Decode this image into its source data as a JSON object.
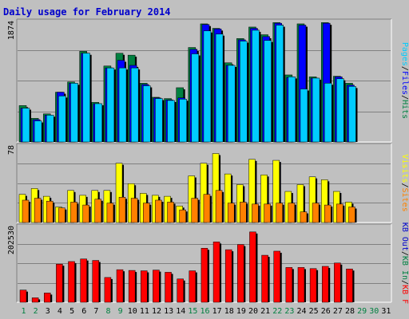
{
  "chart_data": {
    "type": "bar",
    "title": "Daily usage for February 2014",
    "days": [
      "1",
      "2",
      "3",
      "4",
      "5",
      "6",
      "7",
      "8",
      "9",
      "10",
      "11",
      "12",
      "13",
      "14",
      "15",
      "16",
      "17",
      "18",
      "19",
      "20",
      "21",
      "22",
      "23",
      "24",
      "25",
      "26",
      "27",
      "28",
      "29",
      "30",
      "31"
    ],
    "weekend_days": [
      "1",
      "2",
      "8",
      "9",
      "15",
      "16",
      "22",
      "23",
      "29",
      "30"
    ],
    "colors": {
      "background": "#c0c0c0",
      "title": "#0000cc",
      "weekday_label": "#000000",
      "weekend_label": "#008040",
      "pages": "#00ccff",
      "files": "#0000ff",
      "hits": "#008040",
      "visits": "#ffff00",
      "sites": "#ff8000",
      "kbout": "#0000cc",
      "kbin": "#008040",
      "kbf": "#ff0000"
    },
    "panels": [
      {
        "name": "hits-files-pages",
        "ymax_label": "1874",
        "ymax": 1874,
        "legend": [
          {
            "text": "Pages",
            "color": "#00ccff"
          },
          {
            "text": "Files",
            "color": "#0000ff"
          },
          {
            "text": "Hits",
            "color": "#008040"
          }
        ],
        "series": [
          {
            "name": "Hits",
            "values": [
              570,
              370,
              440,
              780,
              940,
              1420,
              620,
              1190,
              1390,
              1360,
              920,
              700,
              680,
              850,
              1480,
              1850,
              1780,
              1240,
              1620,
              1800,
              1680,
              1870,
              1050,
              1850,
              1020,
              1870,
              1030,
              920,
              null,
              null,
              null
            ]
          },
          {
            "name": "Files",
            "values": [
              530,
              350,
              420,
              780,
              920,
              1390,
              600,
              1160,
              1280,
              1200,
              900,
              690,
              660,
              690,
              1450,
              1840,
              1770,
              1200,
              1600,
              1780,
              1650,
              1860,
              1010,
              1830,
              1000,
              1860,
              1020,
              890,
              null,
              null,
              null
            ]
          },
          {
            "name": "Pages",
            "values": [
              530,
              330,
              420,
              720,
              920,
              1390,
              600,
              1160,
              1160,
              1160,
              880,
              680,
              650,
              670,
              1380,
              1740,
              1690,
              1200,
              1580,
              1750,
              1590,
              1830,
              1020,
              830,
              1000,
              920,
              990,
              870,
              null,
              null,
              null
            ]
          }
        ]
      },
      {
        "name": "visits-sites",
        "ymax_label": "78",
        "ymax": 78,
        "legend": [
          {
            "text": "Visits",
            "color": "#ffff00"
          },
          {
            "text": "Sites",
            "color": "#ff8000"
          }
        ],
        "series": [
          {
            "name": "Visits",
            "values": [
              29,
              35,
              27,
              16,
              33,
              28,
              33,
              33,
              61,
              40,
              30,
              28,
              27,
              17,
              48,
              61,
              71,
              50,
              39,
              65,
              49,
              64,
              32,
              39,
              47,
              44,
              32,
              21,
              null,
              null,
              null
            ]
          },
          {
            "name": "Sites",
            "values": [
              23,
              25,
              22,
              15,
              21,
              18,
              24,
              20,
              26,
              25,
              20,
              23,
              21,
              13,
              25,
              29,
              33,
              20,
              21,
              19,
              19,
              20,
              20,
              11,
              20,
              18,
              19,
              16,
              null,
              null,
              null
            ]
          }
        ]
      },
      {
        "name": "kbf",
        "ymax_label": "202530",
        "ymax": 202530,
        "legend": [
          {
            "text": "KB F",
            "color": "#ff0000"
          },
          {
            "text": "KB In",
            "color": "#008040"
          },
          {
            "text": "KB Out",
            "color": "#0000cc"
          }
        ],
        "series": [
          {
            "name": "KB F",
            "values": [
              33000,
              12000,
              25000,
              103000,
              110000,
              117000,
              113000,
              67000,
              88000,
              86000,
              85000,
              87000,
              81000,
              63000,
              85000,
              146000,
              163000,
              142000,
              156000,
              190000,
              127000,
              138000,
              94000,
              94000,
              91000,
              97000,
              106000,
              90000,
              null,
              null,
              null
            ]
          }
        ]
      }
    ]
  }
}
